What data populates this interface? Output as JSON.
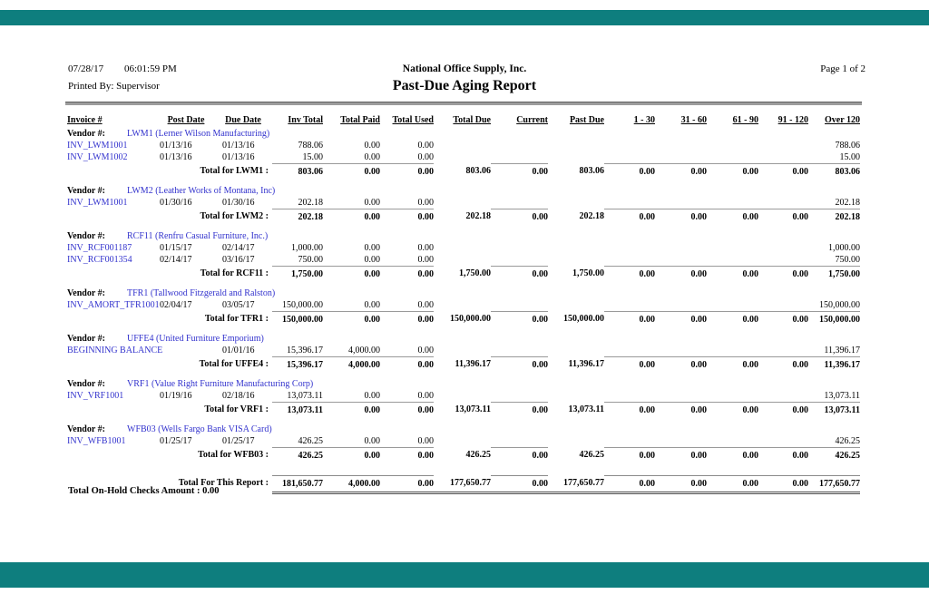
{
  "page": {
    "date": "07/28/17",
    "time": "06:01:59 PM",
    "printed_by": "Printed By: Supervisor",
    "company": "National Office Supply, Inc.",
    "title": "Past-Due Aging Report",
    "page_label": "Page 1 of 2"
  },
  "colors": {
    "chrome_teal": "#0e7e7e",
    "link_blue": "#3232cd"
  },
  "columns": [
    "Invoice #",
    "Post Date",
    "Due Date",
    "Inv Total",
    "Total Paid",
    "Total Used",
    "Total Due",
    "Current",
    "Past Due",
    "1 - 30",
    "31 - 60",
    "61 - 90",
    "91 - 120",
    "Over 120"
  ],
  "vendor_label": "Vendor #:",
  "rows": [
    {
      "type": "vendor",
      "name": "LWM1 (Lerner Wilson Manufacturing)"
    },
    {
      "type": "invoice",
      "id": "INV_LWM1001",
      "post": "01/13/16",
      "due": "01/13/16",
      "inv": "788.06",
      "paid": "0.00",
      "used": "0.00",
      "over": "788.06"
    },
    {
      "type": "invoice",
      "id": "INV_LWM1002",
      "post": "01/13/16",
      "due": "01/13/16",
      "inv": "15.00",
      "paid": "0.00",
      "used": "0.00",
      "over": "15.00"
    },
    {
      "type": "vendor_total",
      "label": "Total for LWM1 :",
      "vals": [
        "803.06",
        "0.00",
        "0.00",
        "803.06",
        "0.00",
        "803.06",
        "0.00",
        "0.00",
        "0.00",
        "0.00",
        "803.06"
      ]
    },
    {
      "type": "vendor",
      "name": "LWM2 (Leather Works of Montana, Inc)"
    },
    {
      "type": "invoice",
      "id": "INV_LWM1001",
      "post": "01/30/16",
      "due": "01/30/16",
      "inv": "202.18",
      "paid": "0.00",
      "used": "0.00",
      "over": "202.18"
    },
    {
      "type": "vendor_total",
      "label": "Total for LWM2 :",
      "vals": [
        "202.18",
        "0.00",
        "0.00",
        "202.18",
        "0.00",
        "202.18",
        "0.00",
        "0.00",
        "0.00",
        "0.00",
        "202.18"
      ]
    },
    {
      "type": "vendor",
      "name": "RCF11 (Renfru Casual Furniture, Inc.)"
    },
    {
      "type": "invoice",
      "id": "INV_RCF001187",
      "post": "01/15/17",
      "due": "02/14/17",
      "inv": "1,000.00",
      "paid": "0.00",
      "used": "0.00",
      "over": "1,000.00"
    },
    {
      "type": "invoice",
      "id": "INV_RCF001354",
      "post": "02/14/17",
      "due": "03/16/17",
      "inv": "750.00",
      "paid": "0.00",
      "used": "0.00",
      "over": "750.00"
    },
    {
      "type": "vendor_total",
      "label": "Total for RCF11 :",
      "vals": [
        "1,750.00",
        "0.00",
        "0.00",
        "1,750.00",
        "0.00",
        "1,750.00",
        "0.00",
        "0.00",
        "0.00",
        "0.00",
        "1,750.00"
      ]
    },
    {
      "type": "vendor",
      "name": "TFR1 (Tallwood Fitzgerald and Ralston)"
    },
    {
      "type": "invoice",
      "id": "INV_AMORT_TFR1001",
      "post": "02/04/17",
      "due": "03/05/17",
      "inv": "150,000.00",
      "paid": "0.00",
      "used": "0.00",
      "over": "150,000.00"
    },
    {
      "type": "vendor_total",
      "label": "Total for TFR1 :",
      "vals": [
        "150,000.00",
        "0.00",
        "0.00",
        "150,000.00",
        "0.00",
        "150,000.00",
        "0.00",
        "0.00",
        "0.00",
        "0.00",
        "150,000.00"
      ]
    },
    {
      "type": "vendor",
      "name": "UFFE4 (United Furniture Emporium)"
    },
    {
      "type": "invoice",
      "id": "BEGINNING BALANCE",
      "post": "",
      "due": "01/01/16",
      "inv": "15,396.17",
      "paid": "4,000.00",
      "used": "0.00",
      "over": "11,396.17"
    },
    {
      "type": "vendor_total",
      "label": "Total for UFFE4 :",
      "vals": [
        "15,396.17",
        "4,000.00",
        "0.00",
        "11,396.17",
        "0.00",
        "11,396.17",
        "0.00",
        "0.00",
        "0.00",
        "0.00",
        "11,396.17"
      ]
    },
    {
      "type": "vendor",
      "name": "VRF1 (Value Right Furniture Manufacturing Corp)"
    },
    {
      "type": "invoice",
      "id": "INV_VRF1001",
      "post": "01/19/16",
      "due": "02/18/16",
      "inv": "13,073.11",
      "paid": "0.00",
      "used": "0.00",
      "over": "13,073.11"
    },
    {
      "type": "vendor_total",
      "label": "Total for VRF1 :",
      "vals": [
        "13,073.11",
        "0.00",
        "0.00",
        "13,073.11",
        "0.00",
        "13,073.11",
        "0.00",
        "0.00",
        "0.00",
        "0.00",
        "13,073.11"
      ]
    },
    {
      "type": "vendor",
      "name": "WFB03 (Wells Fargo Bank VISA Card)"
    },
    {
      "type": "invoice",
      "id": "INV_WFB1001",
      "post": "01/25/17",
      "due": "01/25/17",
      "inv": "426.25",
      "paid": "0.00",
      "used": "0.00",
      "over": "426.25"
    },
    {
      "type": "vendor_total",
      "label": "Total for WFB03 :",
      "vals": [
        "426.25",
        "0.00",
        "0.00",
        "426.25",
        "0.00",
        "426.25",
        "0.00",
        "0.00",
        "0.00",
        "0.00",
        "426.25"
      ]
    },
    {
      "type": "report_total",
      "label": "Total For This Report :",
      "vals": [
        "181,650.77",
        "4,000.00",
        "0.00",
        "177,650.77",
        "0.00",
        "177,650.77",
        "0.00",
        "0.00",
        "0.00",
        "0.00",
        "177,650.77"
      ]
    }
  ],
  "footer": {
    "on_hold": "Total On-Hold Checks Amount : 0.00"
  }
}
